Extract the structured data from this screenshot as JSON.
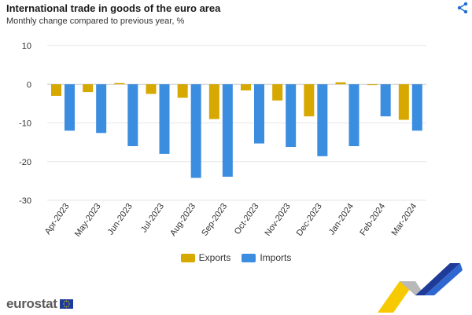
{
  "header": {
    "title": "International trade in goods of the euro area",
    "subtitle": "Monthly change compared to previous year, %",
    "share_icon": "share-icon"
  },
  "colors": {
    "exports": "#d6a800",
    "imports": "#3b8de0",
    "grid": "#e6e6e6",
    "zero_line": "#cccccc"
  },
  "legend": {
    "exports": "Exports",
    "imports": "Imports"
  },
  "branding": {
    "logo_text": "eurostat"
  },
  "chart_data": {
    "type": "bar",
    "categories": [
      "Apr-2023",
      "May-2023",
      "Jun-2023",
      "Jul-2023",
      "Aug-2023",
      "Sep-2023",
      "Oct-2023",
      "Nov-2023",
      "Dec-2023",
      "Jan-2024",
      "Feb-2024",
      "Mar-2024"
    ],
    "series": [
      {
        "name": "Exports",
        "values": [
          -3.0,
          -2.0,
          0.3,
          -2.5,
          -3.5,
          -9.0,
          -1.6,
          -4.2,
          -8.3,
          0.5,
          -0.2,
          -9.2
        ]
      },
      {
        "name": "Imports",
        "values": [
          -12.0,
          -12.6,
          -16.0,
          -18.0,
          -24.2,
          -23.9,
          -15.3,
          -16.2,
          -18.6,
          -16.0,
          -8.3,
          -12.0
        ]
      }
    ],
    "yticks": [
      10,
      0,
      -10,
      -20,
      -30
    ],
    "ylim": [
      -30,
      10
    ],
    "grid": true,
    "legend_position": "bottom"
  }
}
